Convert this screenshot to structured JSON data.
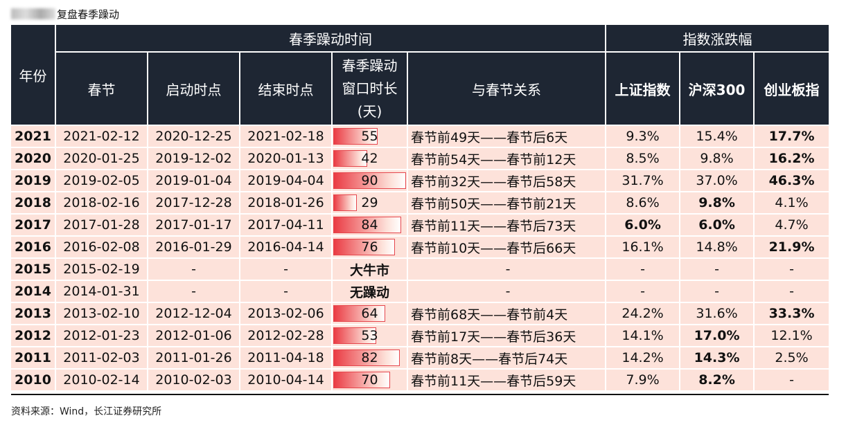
{
  "header": {
    "title": "复盘春季躁动"
  },
  "table": {
    "header_top": [
      "年份",
      "春季躁动时间",
      "指数涨跌幅"
    ],
    "header_sub": [
      "春节",
      "启动时点",
      "结束时点",
      [
        "春季躁动",
        "窗口时长",
        "(天)"
      ],
      "与春节关系",
      "上证指数",
      "沪深300",
      "创业板指"
    ],
    "rows": [
      [
        "2021",
        "2021-02-12",
        "2020-12-25",
        "2021-02-18",
        55,
        "春节前49天——春节后6天",
        "9.3%",
        "15.4%",
        "17.7%"
      ],
      [
        "2020",
        "2020-01-25",
        "2019-12-02",
        "2020-01-13",
        42,
        "春节前54天——春节前12天",
        "8.5%",
        "9.8%",
        "16.2%"
      ],
      [
        "2019",
        "2019-02-05",
        "2019-01-04",
        "2019-04-04",
        90,
        "春节前32天——春节后58天",
        "31.7%",
        "37.0%",
        "46.3%"
      ],
      [
        "2018",
        "2018-02-16",
        "2017-12-28",
        "2018-01-26",
        29,
        "春节前50天——春节前21天",
        "8.6%",
        "9.8%",
        "4.1%"
      ],
      [
        "2017",
        "2017-01-28",
        "2017-01-17",
        "2017-04-11",
        84,
        "春节前11天——春节后73天",
        "6.0%",
        "6.0%",
        "4.7%"
      ],
      [
        "2016",
        "2016-02-08",
        "2016-01-29",
        "2016-04-14",
        76,
        "春节前10天——春节后66天",
        "16.1%",
        "14.8%",
        "21.9%"
      ],
      [
        "2015",
        "2015-02-19",
        "-",
        "-",
        "大牛市",
        "-",
        "-",
        "-",
        "-"
      ],
      [
        "2014",
        "2014-01-31",
        "-",
        "-",
        "无躁动",
        "-",
        "-",
        "-",
        "-"
      ],
      [
        "2013",
        "2013-02-10",
        "2012-12-04",
        "2013-02-06",
        64,
        "春节前68天——春节前4天",
        "24.2%",
        "31.6%",
        "33.3%"
      ],
      [
        "2012",
        "2012-01-23",
        "2012-01-06",
        "2012-02-28",
        53,
        "春节前17天——春节后36天",
        "14.1%",
        "17.0%",
        "12.1%"
      ],
      [
        "2011",
        "2011-02-03",
        "2011-01-26",
        "2011-04-18",
        82,
        "春节前8天——春节后74天",
        "14.2%",
        "14.3%",
        "2.5%"
      ],
      [
        "2010",
        "2010-02-14",
        "2010-02-03",
        "2010-04-14",
        70,
        "春节前11天——春节后59天",
        "7.9%",
        "8.2%",
        "-"
      ]
    ],
    "bold_cells": [
      [
        8
      ],
      [
        8
      ],
      [
        8
      ],
      [
        7
      ],
      [
        6,
        7
      ],
      [
        8
      ],
      [
        4
      ],
      [
        4
      ],
      [
        8
      ],
      [
        7
      ],
      [
        7
      ],
      [
        7
      ]
    ]
  },
  "footer": {
    "source": "资料来源：Wind，长江证券研究所"
  }
}
